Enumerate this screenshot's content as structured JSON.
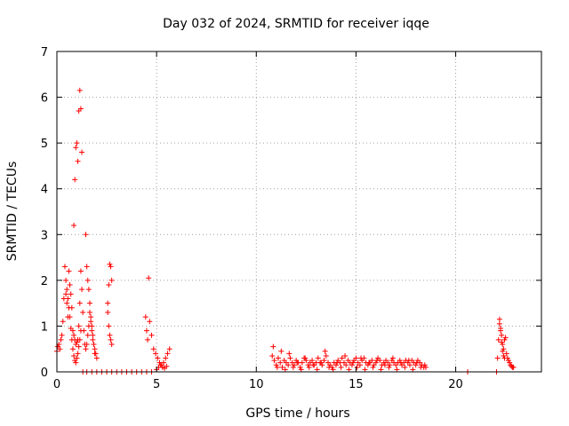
{
  "chart_data": {
    "type": "scatter",
    "title": "Day 032 of 2024, SRMTID for receiver iqqe",
    "xlabel": "GPS time / hours",
    "ylabel": "SRMTID / TECUs",
    "xlim": [
      0,
      24.3
    ],
    "ylim": [
      0,
      7
    ],
    "xticks": [
      0,
      5,
      10,
      15,
      20
    ],
    "yticks": [
      0,
      1,
      2,
      3,
      4,
      5,
      6,
      7
    ],
    "xtick_labels": [
      "0",
      "5",
      "10",
      "15",
      "20"
    ],
    "ytick_labels": [
      "0",
      "1",
      "2",
      "3",
      "4",
      "5",
      "6",
      "7"
    ],
    "grid": true,
    "marker": "+",
    "color": "#ff0000",
    "series": [
      {
        "name": "SRMTID",
        "x": [
          0.0,
          0.05,
          0.1,
          0.15,
          0.2,
          0.25,
          0.3,
          0.35,
          0.4,
          0.45,
          0.5,
          0.55,
          0.6,
          0.65,
          0.7,
          0.75,
          0.8,
          0.85,
          0.9,
          0.95,
          1.0,
          1.05,
          1.1,
          1.15,
          1.2,
          1.25,
          1.3,
          1.35,
          1.4,
          1.45,
          1.5,
          1.55,
          1.6,
          1.65,
          1.7,
          1.75,
          1.8,
          1.85,
          1.9,
          1.95,
          2.0,
          0.45,
          0.5,
          0.55,
          0.6,
          0.65,
          0.7,
          0.75,
          0.8,
          0.85,
          0.9,
          0.95,
          1.0,
          1.05,
          1.1,
          1.15,
          1.2,
          0.85,
          0.9,
          0.95,
          1.0,
          1.05,
          1.1,
          1.15,
          1.2,
          1.25,
          1.45,
          1.5,
          1.55,
          1.6,
          1.65,
          1.7,
          1.75,
          1.8,
          1.85,
          1.9,
          1.3,
          1.5,
          1.75,
          2.0,
          2.25,
          2.5,
          2.75,
          3.0,
          3.25,
          3.5,
          3.75,
          4.0,
          4.25,
          4.5,
          4.75,
          2.55,
          2.6,
          2.65,
          2.7,
          2.75,
          2.55,
          2.6,
          2.65,
          2.7,
          2.75,
          4.45,
          4.5,
          4.55,
          4.6,
          4.65,
          4.75,
          4.85,
          4.95,
          5.05,
          5.15,
          5.25,
          5.35,
          5.45,
          5.55,
          5.65,
          5.0,
          5.1,
          5.2,
          5.3,
          5.4,
          5.5,
          10.8,
          10.9,
          11.0,
          11.1,
          11.2,
          11.3,
          11.4,
          11.5,
          11.6,
          11.7,
          11.8,
          11.9,
          12.0,
          12.1,
          12.2,
          12.3,
          12.4,
          12.5,
          12.6,
          12.7,
          12.8,
          12.9,
          13.0,
          13.1,
          13.2,
          13.3,
          13.4,
          13.5,
          13.6,
          13.7,
          13.8,
          13.9,
          14.0,
          14.1,
          14.2,
          14.3,
          14.4,
          14.5,
          14.6,
          14.7,
          14.8,
          14.9,
          15.0,
          15.1,
          15.2,
          15.3,
          15.4,
          15.5,
          15.6,
          15.7,
          15.8,
          15.9,
          16.0,
          16.1,
          16.2,
          16.3,
          16.4,
          16.5,
          16.6,
          16.7,
          16.8,
          16.9,
          17.0,
          17.1,
          17.2,
          17.3,
          17.4,
          17.5,
          17.6,
          17.7,
          17.8,
          17.9,
          18.0,
          18.1,
          18.2,
          18.3,
          18.4,
          18.5,
          10.85,
          11.05,
          11.25,
          11.45,
          11.65,
          11.85,
          12.05,
          12.25,
          12.45,
          12.65,
          12.85,
          13.05,
          13.25,
          13.45,
          13.65,
          13.85,
          14.05,
          14.25,
          14.45,
          14.65,
          14.85,
          15.05,
          15.25,
          15.45,
          15.65,
          15.85,
          16.05,
          16.25,
          16.45,
          16.65,
          16.85,
          17.05,
          17.25,
          17.45,
          17.65,
          17.85,
          18.05,
          18.25,
          18.45,
          20.6,
          22.05,
          22.1,
          22.15,
          22.2,
          22.25,
          22.3,
          22.35,
          22.4,
          22.45,
          22.5,
          22.55,
          22.6,
          22.65,
          22.7,
          22.75,
          22.8,
          22.85,
          22.9,
          22.2,
          22.25,
          22.3,
          22.35,
          22.4,
          22.45
        ],
        "y": [
          0.45,
          0.55,
          0.6,
          0.5,
          0.7,
          0.8,
          1.1,
          1.6,
          2.3,
          1.7,
          1.5,
          1.2,
          2.2,
          1.9,
          1.7,
          1.4,
          0.9,
          0.8,
          0.7,
          0.6,
          0.65,
          0.7,
          1.0,
          1.5,
          2.2,
          1.8,
          1.3,
          0.9,
          0.6,
          0.5,
          0.6,
          0.8,
          1.0,
          1.3,
          1.1,
          0.9,
          0.7,
          0.6,
          0.5,
          0.4,
          0.3,
          2.0,
          1.8,
          1.6,
          1.4,
          1.2,
          0.95,
          0.7,
          0.5,
          0.35,
          0.25,
          0.2,
          0.3,
          0.4,
          0.55,
          0.7,
          0.9,
          3.2,
          4.2,
          4.9,
          5.0,
          4.6,
          5.7,
          6.15,
          5.75,
          4.8,
          3.0,
          2.3,
          2.0,
          1.8,
          1.5,
          1.2,
          1.0,
          0.8,
          0.6,
          0.4,
          0.0,
          0.0,
          0.0,
          0.0,
          0.0,
          0.0,
          0.0,
          0.0,
          0.0,
          0.0,
          0.0,
          0.0,
          0.0,
          0.0,
          0.0,
          1.5,
          1.9,
          2.35,
          2.3,
          2.0,
          1.3,
          1.0,
          0.8,
          0.7,
          0.6,
          1.2,
          0.9,
          0.7,
          2.05,
          1.1,
          0.8,
          0.5,
          0.4,
          0.3,
          0.2,
          0.15,
          0.2,
          0.3,
          0.4,
          0.5,
          0.05,
          0.1,
          0.15,
          0.1,
          0.08,
          0.12,
          0.35,
          0.25,
          0.15,
          0.3,
          0.2,
          0.1,
          0.25,
          0.2,
          0.15,
          0.3,
          0.2,
          0.15,
          0.25,
          0.2,
          0.1,
          0.2,
          0.3,
          0.25,
          0.15,
          0.2,
          0.25,
          0.15,
          0.2,
          0.3,
          0.2,
          0.15,
          0.25,
          0.35,
          0.2,
          0.15,
          0.1,
          0.2,
          0.15,
          0.25,
          0.2,
          0.3,
          0.2,
          0.15,
          0.25,
          0.2,
          0.15,
          0.25,
          0.3,
          0.2,
          0.15,
          0.25,
          0.3,
          0.2,
          0.15,
          0.2,
          0.25,
          0.15,
          0.2,
          0.3,
          0.25,
          0.15,
          0.2,
          0.25,
          0.2,
          0.15,
          0.25,
          0.2,
          0.15,
          0.2,
          0.25,
          0.15,
          0.2,
          0.25,
          0.2,
          0.15,
          0.25,
          0.2,
          0.15,
          0.25,
          0.2,
          0.15,
          0.1,
          0.1,
          0.55,
          0.1,
          0.45,
          0.05,
          0.4,
          0.1,
          0.2,
          0.05,
          0.3,
          0.1,
          0.15,
          0.05,
          0.2,
          0.45,
          0.1,
          0.05,
          0.2,
          0.1,
          0.35,
          0.05,
          0.2,
          0.1,
          0.3,
          0.05,
          0.2,
          0.1,
          0.25,
          0.05,
          0.15,
          0.1,
          0.3,
          0.05,
          0.2,
          0.1,
          0.25,
          0.05,
          0.2,
          0.1,
          0.15,
          0.0,
          0.0,
          0.3,
          0.7,
          1.15,
          0.95,
          0.8,
          0.6,
          0.5,
          0.7,
          0.75,
          0.4,
          0.3,
          0.25,
          0.2,
          0.15,
          0.12,
          0.1,
          0.1,
          1.05,
          0.9,
          0.65,
          0.45,
          0.35,
          0.3
        ]
      }
    ]
  }
}
